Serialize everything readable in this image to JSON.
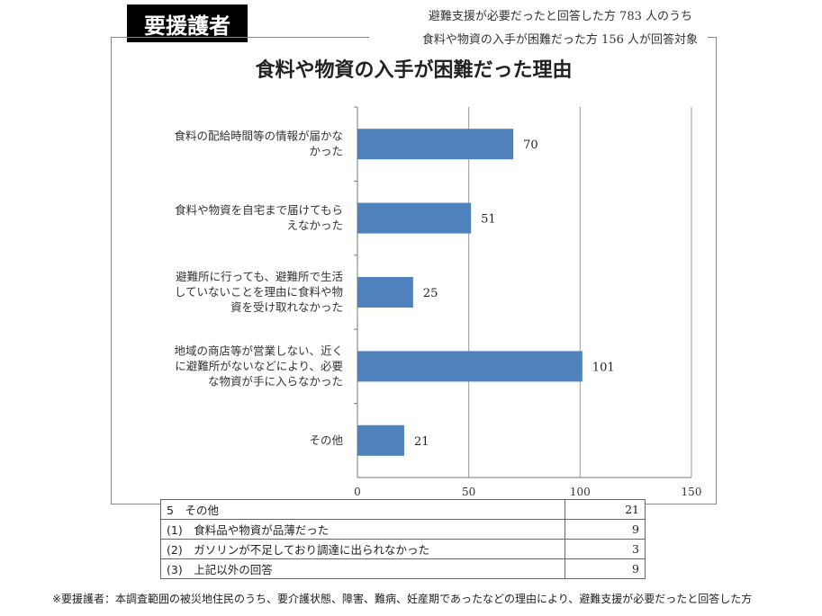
{
  "badge": "要援護者",
  "respondents": {
    "line1": "避難支援が必要だったと回答した方 783 人のうち",
    "line2": "食料や物資の入手が困難だった方 156 人が回答対象"
  },
  "chart_data": {
    "type": "bar",
    "orientation": "horizontal",
    "title": "食料や物資の入手が困難だった理由",
    "categories": [
      [
        "食料の配給時間等の情報が届かな",
        "かった"
      ],
      [
        "食料や物資を自宅まで届けてもら",
        "えなかった"
      ],
      [
        "避難所に行っても、避難所で生活",
        "していないことを理由に食料や物",
        "資を受け取れなかった"
      ],
      [
        "地域の商店等が営業しない、近く",
        "に避難所がないなどにより、必要",
        "な物資が手に入らなかった"
      ],
      [
        "その他"
      ]
    ],
    "values": [
      70,
      51,
      25,
      101,
      21
    ],
    "xlim": [
      0,
      150
    ],
    "xticks": [
      0,
      50,
      100,
      150
    ],
    "grid": true,
    "bar_color": "#4f81bd"
  },
  "breakdown": {
    "header": {
      "label": "5　その他",
      "value": "21"
    },
    "rows": [
      {
        "label": "(1)　食料品や物資が品薄だった",
        "value": "9"
      },
      {
        "label": "(2)　ガソリンが不足しており調達に出られなかった",
        "value": "3"
      },
      {
        "label": "(3)　上記以外の回答",
        "value": "9"
      }
    ]
  },
  "footnote": "※要援護者：本調査範囲の被災地住民のうち、要介護状態、障害、難病、妊産期であったなどの理由により、避難支援が必要だったと回答した方"
}
